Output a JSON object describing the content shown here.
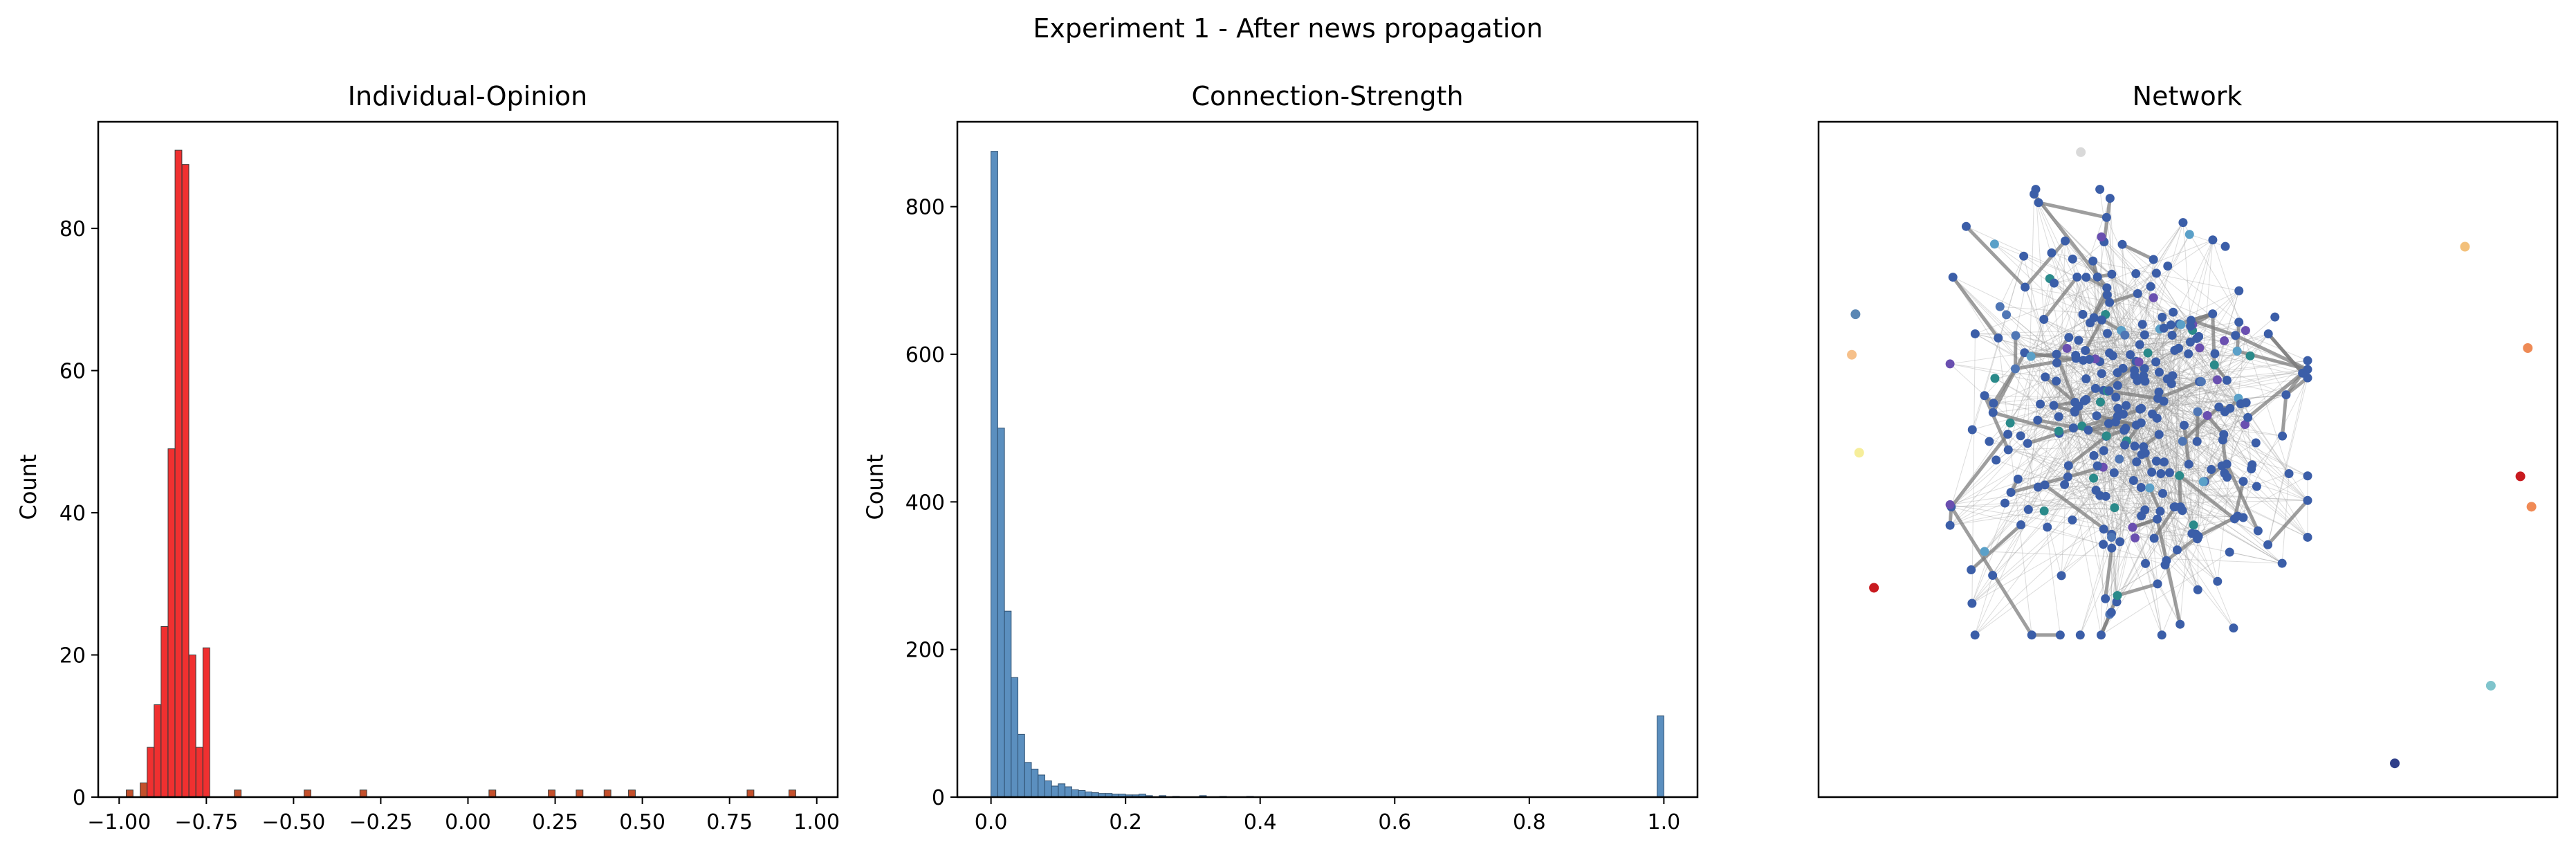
{
  "figure": {
    "suptitle": "Experiment 1 - After news propagation"
  },
  "chart_data": [
    {
      "type": "bar",
      "title": "Individual-Opinion",
      "xlabel": "",
      "ylabel": "Count",
      "xlim": [
        -1.06,
        1.06
      ],
      "ylim": [
        0,
        95
      ],
      "xticks": [
        -1.0,
        -0.75,
        -0.5,
        -0.25,
        0.0,
        0.25,
        0.5,
        0.75,
        1.0
      ],
      "xtick_labels": [
        "−1.00",
        "−0.75",
        "−0.50",
        "−0.25",
        "0.00",
        "0.25",
        "0.50",
        "0.75",
        "1.00"
      ],
      "yticks": [
        0,
        20,
        40,
        60,
        80
      ],
      "bin_width": 0.0195,
      "bars": [
        {
          "x": -0.97,
          "value": 1
        },
        {
          "x": -0.93,
          "value": 2
        },
        {
          "x": -0.91,
          "value": 7
        },
        {
          "x": -0.89,
          "value": 13
        },
        {
          "x": -0.87,
          "value": 24
        },
        {
          "x": -0.85,
          "value": 49
        },
        {
          "x": -0.83,
          "value": 91
        },
        {
          "x": -0.81,
          "value": 89
        },
        {
          "x": -0.79,
          "value": 20
        },
        {
          "x": -0.77,
          "value": 7
        },
        {
          "x": -0.75,
          "value": 21
        },
        {
          "x": -0.66,
          "value": 1
        },
        {
          "x": -0.46,
          "value": 1
        },
        {
          "x": -0.3,
          "value": 1
        },
        {
          "x": 0.07,
          "value": 1
        },
        {
          "x": 0.24,
          "value": 1
        },
        {
          "x": 0.32,
          "value": 1
        },
        {
          "x": 0.4,
          "value": 1
        },
        {
          "x": 0.47,
          "value": 1
        },
        {
          "x": 0.81,
          "value": 1
        },
        {
          "x": 0.93,
          "value": 1
        }
      ],
      "colors": {
        "high": "#f03030",
        "low": "#c4502c",
        "edge": "#3a3a3a"
      }
    },
    {
      "type": "bar",
      "title": "Connection-Strength",
      "xlabel": "",
      "ylabel": "Count",
      "xlim": [
        -0.05,
        1.05
      ],
      "ylim": [
        0,
        915
      ],
      "xticks": [
        0.0,
        0.2,
        0.4,
        0.6,
        0.8,
        1.0
      ],
      "xtick_labels": [
        "0.0",
        "0.2",
        "0.4",
        "0.6",
        "0.8",
        "1.0"
      ],
      "yticks": [
        0,
        200,
        400,
        600,
        800
      ],
      "bin_width": 0.01,
      "bars": [
        {
          "x": 0.005,
          "value": 875
        },
        {
          "x": 0.015,
          "value": 500
        },
        {
          "x": 0.025,
          "value": 252
        },
        {
          "x": 0.035,
          "value": 162
        },
        {
          "x": 0.045,
          "value": 85
        },
        {
          "x": 0.055,
          "value": 47
        },
        {
          "x": 0.065,
          "value": 38
        },
        {
          "x": 0.075,
          "value": 30
        },
        {
          "x": 0.085,
          "value": 22
        },
        {
          "x": 0.095,
          "value": 15
        },
        {
          "x": 0.105,
          "value": 18
        },
        {
          "x": 0.115,
          "value": 14
        },
        {
          "x": 0.125,
          "value": 10
        },
        {
          "x": 0.135,
          "value": 9
        },
        {
          "x": 0.145,
          "value": 7
        },
        {
          "x": 0.155,
          "value": 6
        },
        {
          "x": 0.165,
          "value": 5
        },
        {
          "x": 0.175,
          "value": 5
        },
        {
          "x": 0.185,
          "value": 4
        },
        {
          "x": 0.195,
          "value": 4
        },
        {
          "x": 0.205,
          "value": 3
        },
        {
          "x": 0.215,
          "value": 3
        },
        {
          "x": 0.225,
          "value": 4
        },
        {
          "x": 0.235,
          "value": 2
        },
        {
          "x": 0.255,
          "value": 2
        },
        {
          "x": 0.275,
          "value": 1
        },
        {
          "x": 0.315,
          "value": 2
        },
        {
          "x": 0.345,
          "value": 1
        },
        {
          "x": 0.385,
          "value": 1
        },
        {
          "x": 0.995,
          "value": 110
        }
      ],
      "colors": {
        "bar": "#5b8fbf",
        "edge": "#2f4f6f"
      }
    },
    {
      "type": "scatter",
      "title": "Network",
      "xlabel": "",
      "ylabel": "",
      "xlim": [
        0,
        100
      ],
      "ylim": [
        0,
        100
      ],
      "grid": false,
      "cluster": {
        "center": [
          42,
          57
        ],
        "spread": [
          11,
          15
        ],
        "node_count": 320,
        "main_color": "#3b5ea8",
        "accent_colors": [
          "#4f76b5",
          "#6a4fb0",
          "#2a8a8a",
          "#5aa0c8"
        ],
        "edge_color": "#9a9a9a",
        "strong_edge_color": "#7d7d7d"
      },
      "outliers": [
        {
          "x": 35.5,
          "y": 95.5,
          "color": "#d9d9d9"
        },
        {
          "x": 5.0,
          "y": 71.5,
          "color": "#5b87b4"
        },
        {
          "x": 4.5,
          "y": 65.5,
          "color": "#f6c08a"
        },
        {
          "x": 5.5,
          "y": 51.0,
          "color": "#f6ee9a"
        },
        {
          "x": 7.5,
          "y": 31.0,
          "color": "#c81a1f"
        },
        {
          "x": 87.5,
          "y": 81.5,
          "color": "#f3c07a"
        },
        {
          "x": 96.0,
          "y": 66.5,
          "color": "#ee8a55"
        },
        {
          "x": 95.0,
          "y": 47.5,
          "color": "#c81a1f"
        },
        {
          "x": 96.5,
          "y": 43.0,
          "color": "#f08a55"
        },
        {
          "x": 91.0,
          "y": 16.5,
          "color": "#7fc4cc"
        },
        {
          "x": 78.0,
          "y": 5.0,
          "color": "#2f3f8a"
        }
      ]
    }
  ]
}
